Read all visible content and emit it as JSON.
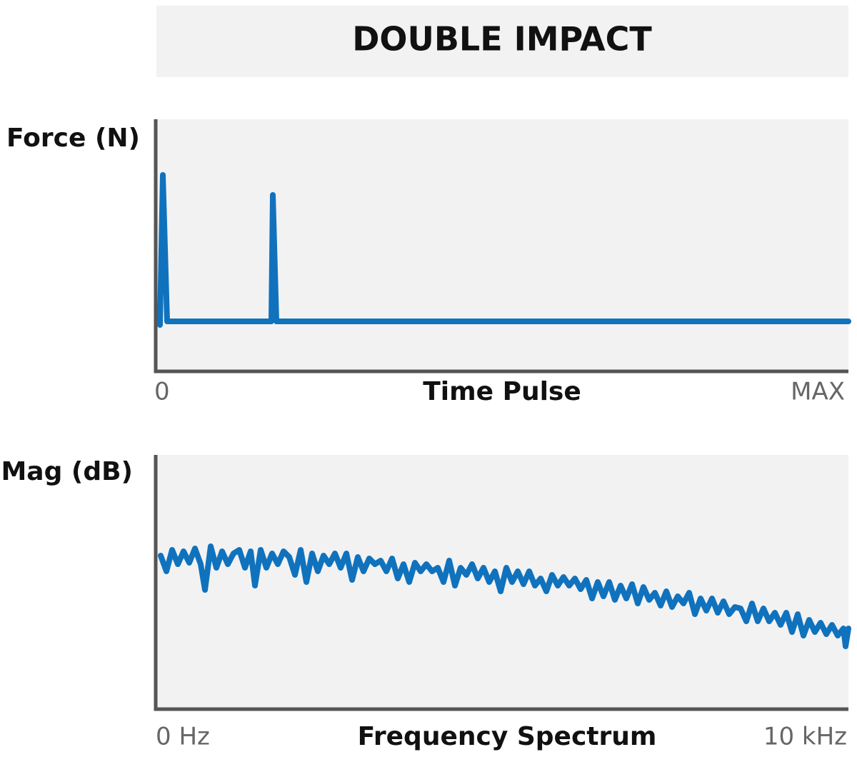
{
  "title": "DOUBLE IMPACT",
  "time_plot": {
    "y_label": "Force (N)",
    "x_label": "Time Pulse",
    "x_start": "0",
    "x_end": "MAX"
  },
  "frequency_plot": {
    "y_label": "Mag (dB)",
    "x_label": "Frequency Spectrum",
    "x_start": "0 Hz",
    "x_end": "10 kHz"
  }
}
